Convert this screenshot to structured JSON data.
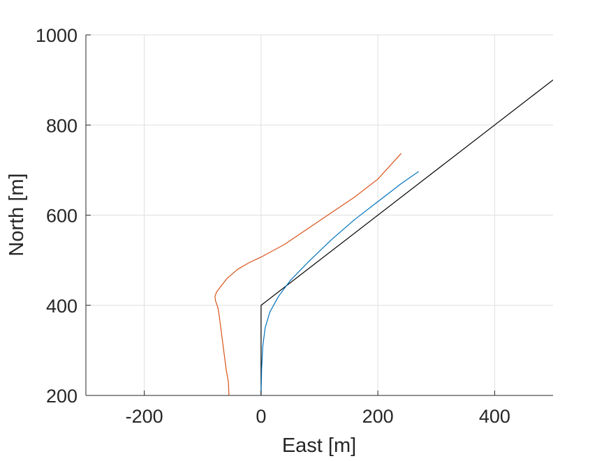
{
  "chart_data": {
    "type": "line",
    "title": "",
    "xlabel": "East [m]",
    "ylabel": "North [m]",
    "xlim": [
      -300,
      500
    ],
    "ylim": [
      200,
      1000
    ],
    "xticks": [
      -200,
      0,
      200,
      400
    ],
    "yticks": [
      200,
      400,
      600,
      800,
      1000
    ],
    "xtick_labels": [
      "-200",
      "0",
      "200",
      "400"
    ],
    "ytick_labels": [
      "200",
      "400",
      "600",
      "800",
      "1000"
    ],
    "grid": true,
    "legend": null,
    "series": [
      {
        "color": "#000000",
        "x": [
          0,
          0,
          500
        ],
        "y": [
          200,
          400,
          900
        ]
      },
      {
        "color": "#0072BD",
        "x": [
          0,
          1,
          3,
          7,
          15,
          30,
          50,
          80,
          120,
          160,
          200,
          240,
          270
        ],
        "y": [
          200,
          260,
          310,
          350,
          385,
          420,
          455,
          495,
          545,
          590,
          630,
          670,
          697
        ]
      },
      {
        "color": "#D95319",
        "x": [
          -55,
          -56,
          -60,
          -62,
          -64,
          -66,
          -68,
          -70,
          -72,
          -74,
          -78,
          -79,
          -76,
          -70,
          -58,
          -40,
          -20,
          0,
          40,
          80,
          120,
          160,
          200,
          240
        ],
        "y": [
          200,
          230,
          260,
          280,
          300,
          320,
          340,
          360,
          380,
          395,
          410,
          420,
          430,
          440,
          460,
          480,
          495,
          507,
          535,
          570,
          605,
          640,
          680,
          737
        ]
      }
    ]
  }
}
